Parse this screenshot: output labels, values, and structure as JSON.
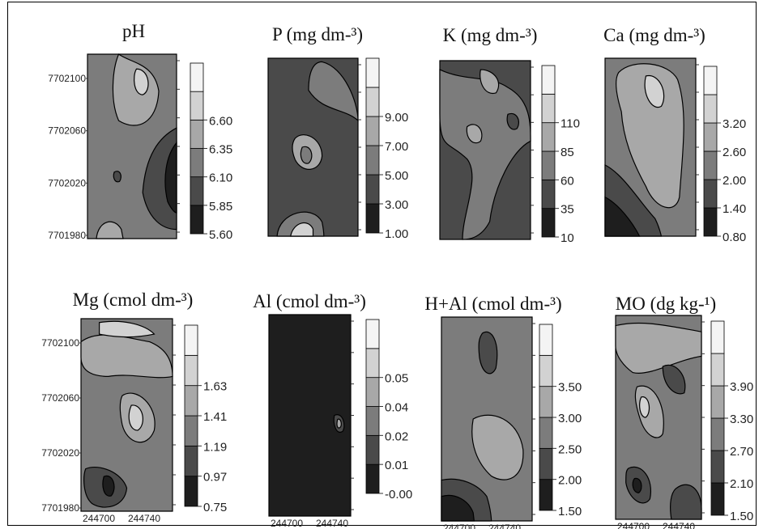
{
  "chart_data": [
    {
      "type": "heatmap",
      "title": "pH",
      "y_ticks": [
        "7702100",
        "7702060",
        "7702020",
        "7701980"
      ],
      "x_ticks": [],
      "colorbar_levels": [
        "5.60",
        "5.85",
        "6.10",
        "6.35",
        "6.60"
      ],
      "colorbar_range": [
        5.6,
        6.85
      ]
    },
    {
      "type": "heatmap",
      "title": "P (mg dm-³)",
      "y_ticks": [],
      "x_ticks": [],
      "colorbar_levels": [
        "1.00",
        "3.00",
        "5.00",
        "7.00",
        "9.00"
      ],
      "colorbar_range": [
        1.0,
        11.0
      ]
    },
    {
      "type": "heatmap",
      "title": "K (mg dm-³)",
      "y_ticks": [],
      "x_ticks": [],
      "colorbar_levels": [
        "10",
        "35",
        "60",
        "85",
        "110"
      ],
      "colorbar_range": [
        10,
        135
      ]
    },
    {
      "type": "heatmap",
      "title": "Ca (mg dm-³)",
      "y_ticks": [],
      "x_ticks": [],
      "colorbar_levels": [
        "0.80",
        "1.40",
        "2.00",
        "2.60",
        "3.20"
      ],
      "colorbar_range": [
        0.8,
        3.8
      ]
    },
    {
      "type": "heatmap",
      "title": "Mg (cmol dm-³)",
      "y_ticks": [
        "7702100",
        "7702060",
        "7702020",
        "7701980"
      ],
      "x_ticks": [
        "244700",
        "244740"
      ],
      "colorbar_levels": [
        "0.75",
        "0.97",
        "1.19",
        "1.41",
        "1.63"
      ],
      "colorbar_range": [
        0.75,
        1.85
      ]
    },
    {
      "type": "heatmap",
      "title": "Al (cmol dm-³)",
      "y_ticks": [],
      "x_ticks": [
        "244700",
        "244740"
      ],
      "colorbar_levels": [
        "-0.00",
        "0.01",
        "0.02",
        "0.04",
        "0.05"
      ],
      "colorbar_range": [
        0.0,
        0.06
      ]
    },
    {
      "type": "heatmap",
      "title": "H+Al (cmol dm-³)",
      "y_ticks": [],
      "x_ticks": [
        "244700",
        "244740"
      ],
      "colorbar_levels": [
        "1.50",
        "2.00",
        "2.50",
        "3.00",
        "3.50"
      ],
      "colorbar_range": [
        1.5,
        4.0
      ]
    },
    {
      "type": "heatmap",
      "title": "MO (dg kg-¹)",
      "y_ticks": [],
      "x_ticks": [
        "244700",
        "244740"
      ],
      "colorbar_levels": [
        "1.50",
        "2.10",
        "2.70",
        "3.30",
        "3.90"
      ],
      "colorbar_range": [
        1.5,
        4.5
      ]
    }
  ],
  "colors": {
    "level_fills": [
      "#1e1e1e",
      "#4a4a4a",
      "#7c7c7c",
      "#a8a8a8",
      "#d2d2d2",
      "#f4f4f4"
    ],
    "contour_line": "#000000"
  }
}
